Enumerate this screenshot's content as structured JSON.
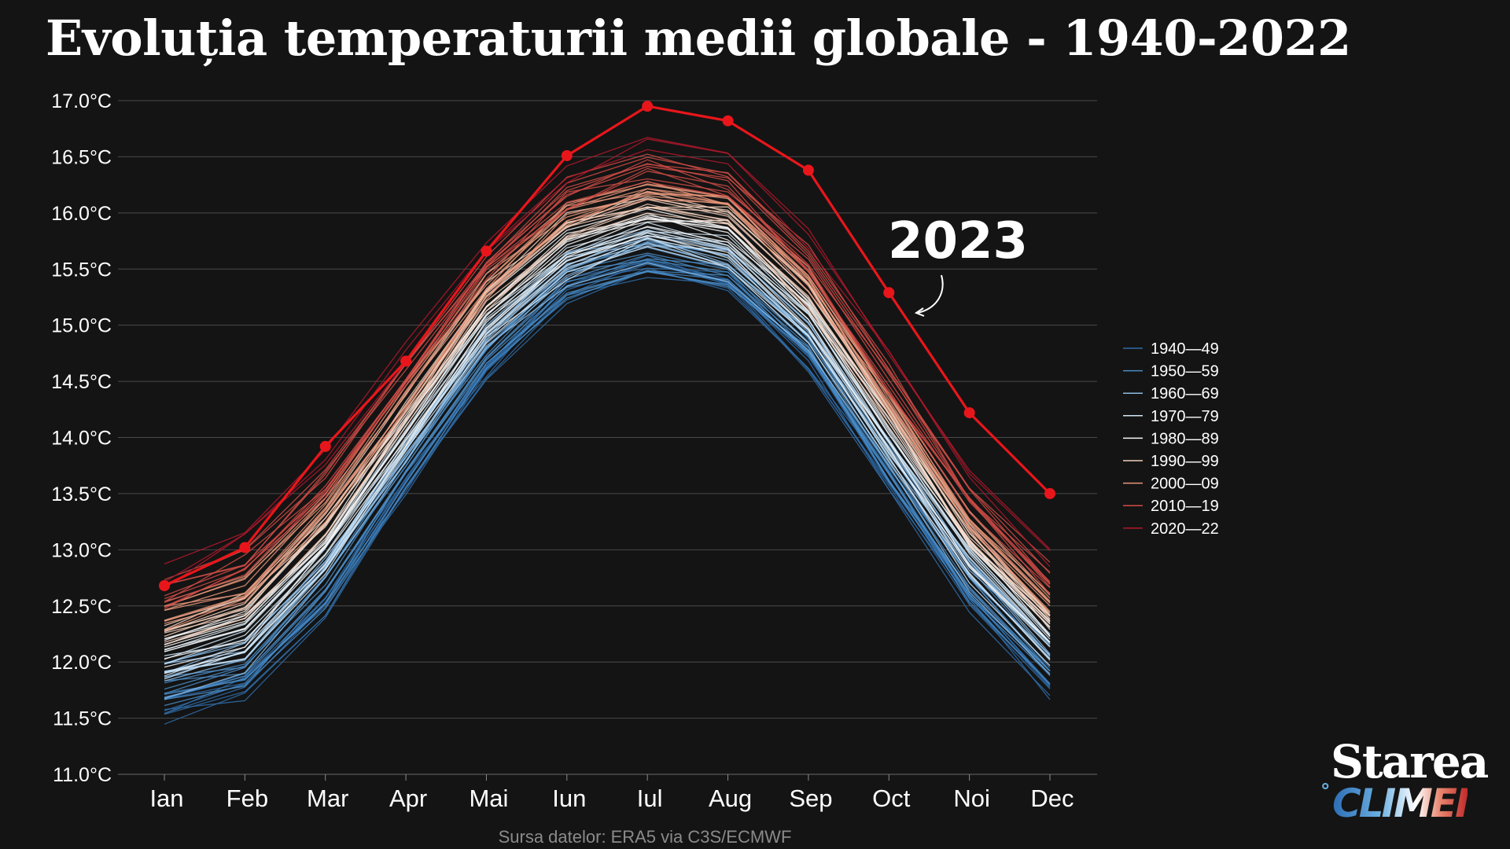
{
  "title": "Evoluția temperaturii medii globale - 1940-2022",
  "source": {
    "label": "Sursa datelor:",
    "value": "ERA5 via C3S/ECMWF"
  },
  "logo": {
    "top": "Starea",
    "bottom": "CLIMEI",
    "degree": "°"
  },
  "annotation": {
    "text": "2023"
  },
  "chart_data": {
    "type": "line",
    "title": "Evoluția temperaturii medii globale - 1940-2022",
    "xlabel": "",
    "ylabel": "",
    "categories": [
      "Ian",
      "Feb",
      "Mar",
      "Apr",
      "Mai",
      "Iun",
      "Iul",
      "Aug",
      "Sep",
      "Oct",
      "Noi",
      "Dec"
    ],
    "ylim": [
      11.0,
      17.0
    ],
    "yticks": [
      11.0,
      11.5,
      12.0,
      12.5,
      13.0,
      13.5,
      14.0,
      14.5,
      15.0,
      15.5,
      16.0,
      16.5,
      17.0
    ],
    "ytick_labels": [
      "11.0°C",
      "11.5°C",
      "12.0°C",
      "12.5°C",
      "13.0°C",
      "13.5°C",
      "14.0°C",
      "14.5°C",
      "15.0°C",
      "15.5°C",
      "16.0°C",
      "16.5°C",
      "17.0°C"
    ],
    "grid": true,
    "legend_position": "right",
    "highlight": {
      "name": "2023",
      "color": "#e8161b",
      "values": [
        12.68,
        13.02,
        13.92,
        14.68,
        15.66,
        16.51,
        16.95,
        16.82,
        16.38,
        15.29,
        14.22,
        13.5
      ]
    },
    "decades": [
      {
        "name": "1940—49",
        "color": "#2f6ca8",
        "base": [
          11.62,
          11.8,
          12.55,
          13.62,
          14.62,
          15.33,
          15.56,
          15.4,
          14.72,
          13.65,
          12.6,
          11.82
        ]
      },
      {
        "name": "1950—59",
        "color": "#4a8cc6",
        "base": [
          11.72,
          11.92,
          12.65,
          13.72,
          14.72,
          15.4,
          15.62,
          15.47,
          14.8,
          13.74,
          12.68,
          11.92
        ]
      },
      {
        "name": "1960—69",
        "color": "#8dbde6",
        "base": [
          11.84,
          12.04,
          12.78,
          13.82,
          14.84,
          15.48,
          15.7,
          15.56,
          14.88,
          13.84,
          12.78,
          12.02
        ]
      },
      {
        "name": "1970—79",
        "color": "#d2e6f5",
        "base": [
          11.96,
          12.16,
          12.9,
          13.95,
          14.95,
          15.58,
          15.8,
          15.66,
          14.98,
          13.94,
          12.88,
          12.12
        ]
      },
      {
        "name": "1980—89",
        "color": "#f7f7f7",
        "base": [
          12.1,
          12.3,
          13.05,
          14.08,
          15.08,
          15.7,
          15.92,
          15.8,
          15.1,
          14.06,
          13.0,
          12.25
        ]
      },
      {
        "name": "1990—99",
        "color": "#f3cfbb",
        "base": [
          12.24,
          12.46,
          13.2,
          14.22,
          15.22,
          15.84,
          16.05,
          15.93,
          15.24,
          14.18,
          13.12,
          12.38
        ]
      },
      {
        "name": "2000—09",
        "color": "#e9967a",
        "base": [
          12.42,
          12.66,
          13.4,
          14.38,
          15.38,
          16.02,
          16.22,
          16.1,
          15.42,
          14.36,
          13.3,
          12.55
        ]
      },
      {
        "name": "2010—19",
        "color": "#cf4b45",
        "base": [
          12.6,
          12.9,
          13.62,
          14.58,
          15.54,
          16.2,
          16.42,
          16.28,
          15.6,
          14.55,
          13.48,
          12.74
        ]
      },
      {
        "name": "2020—22",
        "color": "#b2182b",
        "base": [
          12.78,
          13.14,
          13.82,
          14.74,
          15.66,
          16.34,
          16.58,
          16.46,
          15.76,
          14.76,
          13.66,
          12.98
        ]
      }
    ]
  }
}
